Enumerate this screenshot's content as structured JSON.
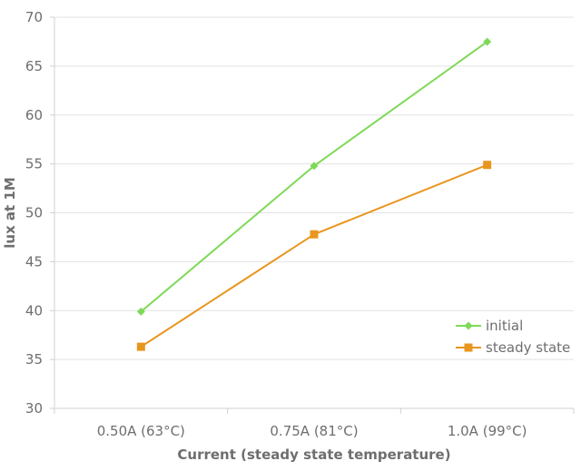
{
  "chart_data": {
    "type": "line",
    "title": "",
    "xlabel": "Current (steady state temperature)",
    "ylabel": "lux at 1M",
    "categories": [
      "0.50A (63°C)",
      "0.75A (81°C)",
      "1.0A (99°C)"
    ],
    "ylim": [
      30,
      70
    ],
    "yticks": [
      30,
      35,
      40,
      45,
      50,
      55,
      60,
      65,
      70
    ],
    "grid": true,
    "legend_position": "right",
    "series": [
      {
        "name": "initial",
        "values": [
          39.9,
          54.8,
          67.5
        ],
        "color": "#7ed957",
        "marker": "diamond"
      },
      {
        "name": "steady state",
        "values": [
          36.3,
          47.8,
          54.9
        ],
        "color": "#e8961e",
        "marker": "square"
      }
    ]
  }
}
